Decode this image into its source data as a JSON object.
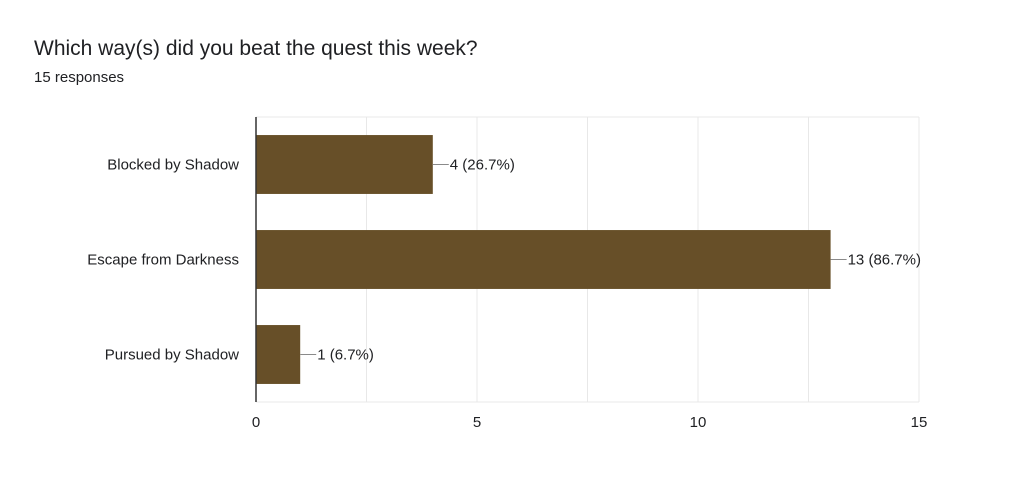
{
  "question": {
    "title": "Which way(s) did you beat the quest this week?",
    "responses": "15 responses"
  },
  "colors": {
    "bar": "#674f28",
    "gridline": "#e8e8e8",
    "axis": "#333333",
    "leader": "#8a8a8a",
    "text": "#202124"
  },
  "chart_data": {
    "type": "bar",
    "orientation": "horizontal",
    "categories": [
      "Blocked by Shadow",
      "Escape from Darkness",
      "Pursued by Shadow"
    ],
    "values": [
      4,
      13,
      1
    ],
    "data_labels": [
      "4 (26.7%)",
      "13 (86.7%)",
      "1 (6.7%)"
    ],
    "xlim": [
      0,
      15
    ],
    "xticks": [
      0,
      5,
      10,
      15
    ],
    "grid": true,
    "legend": "none"
  }
}
